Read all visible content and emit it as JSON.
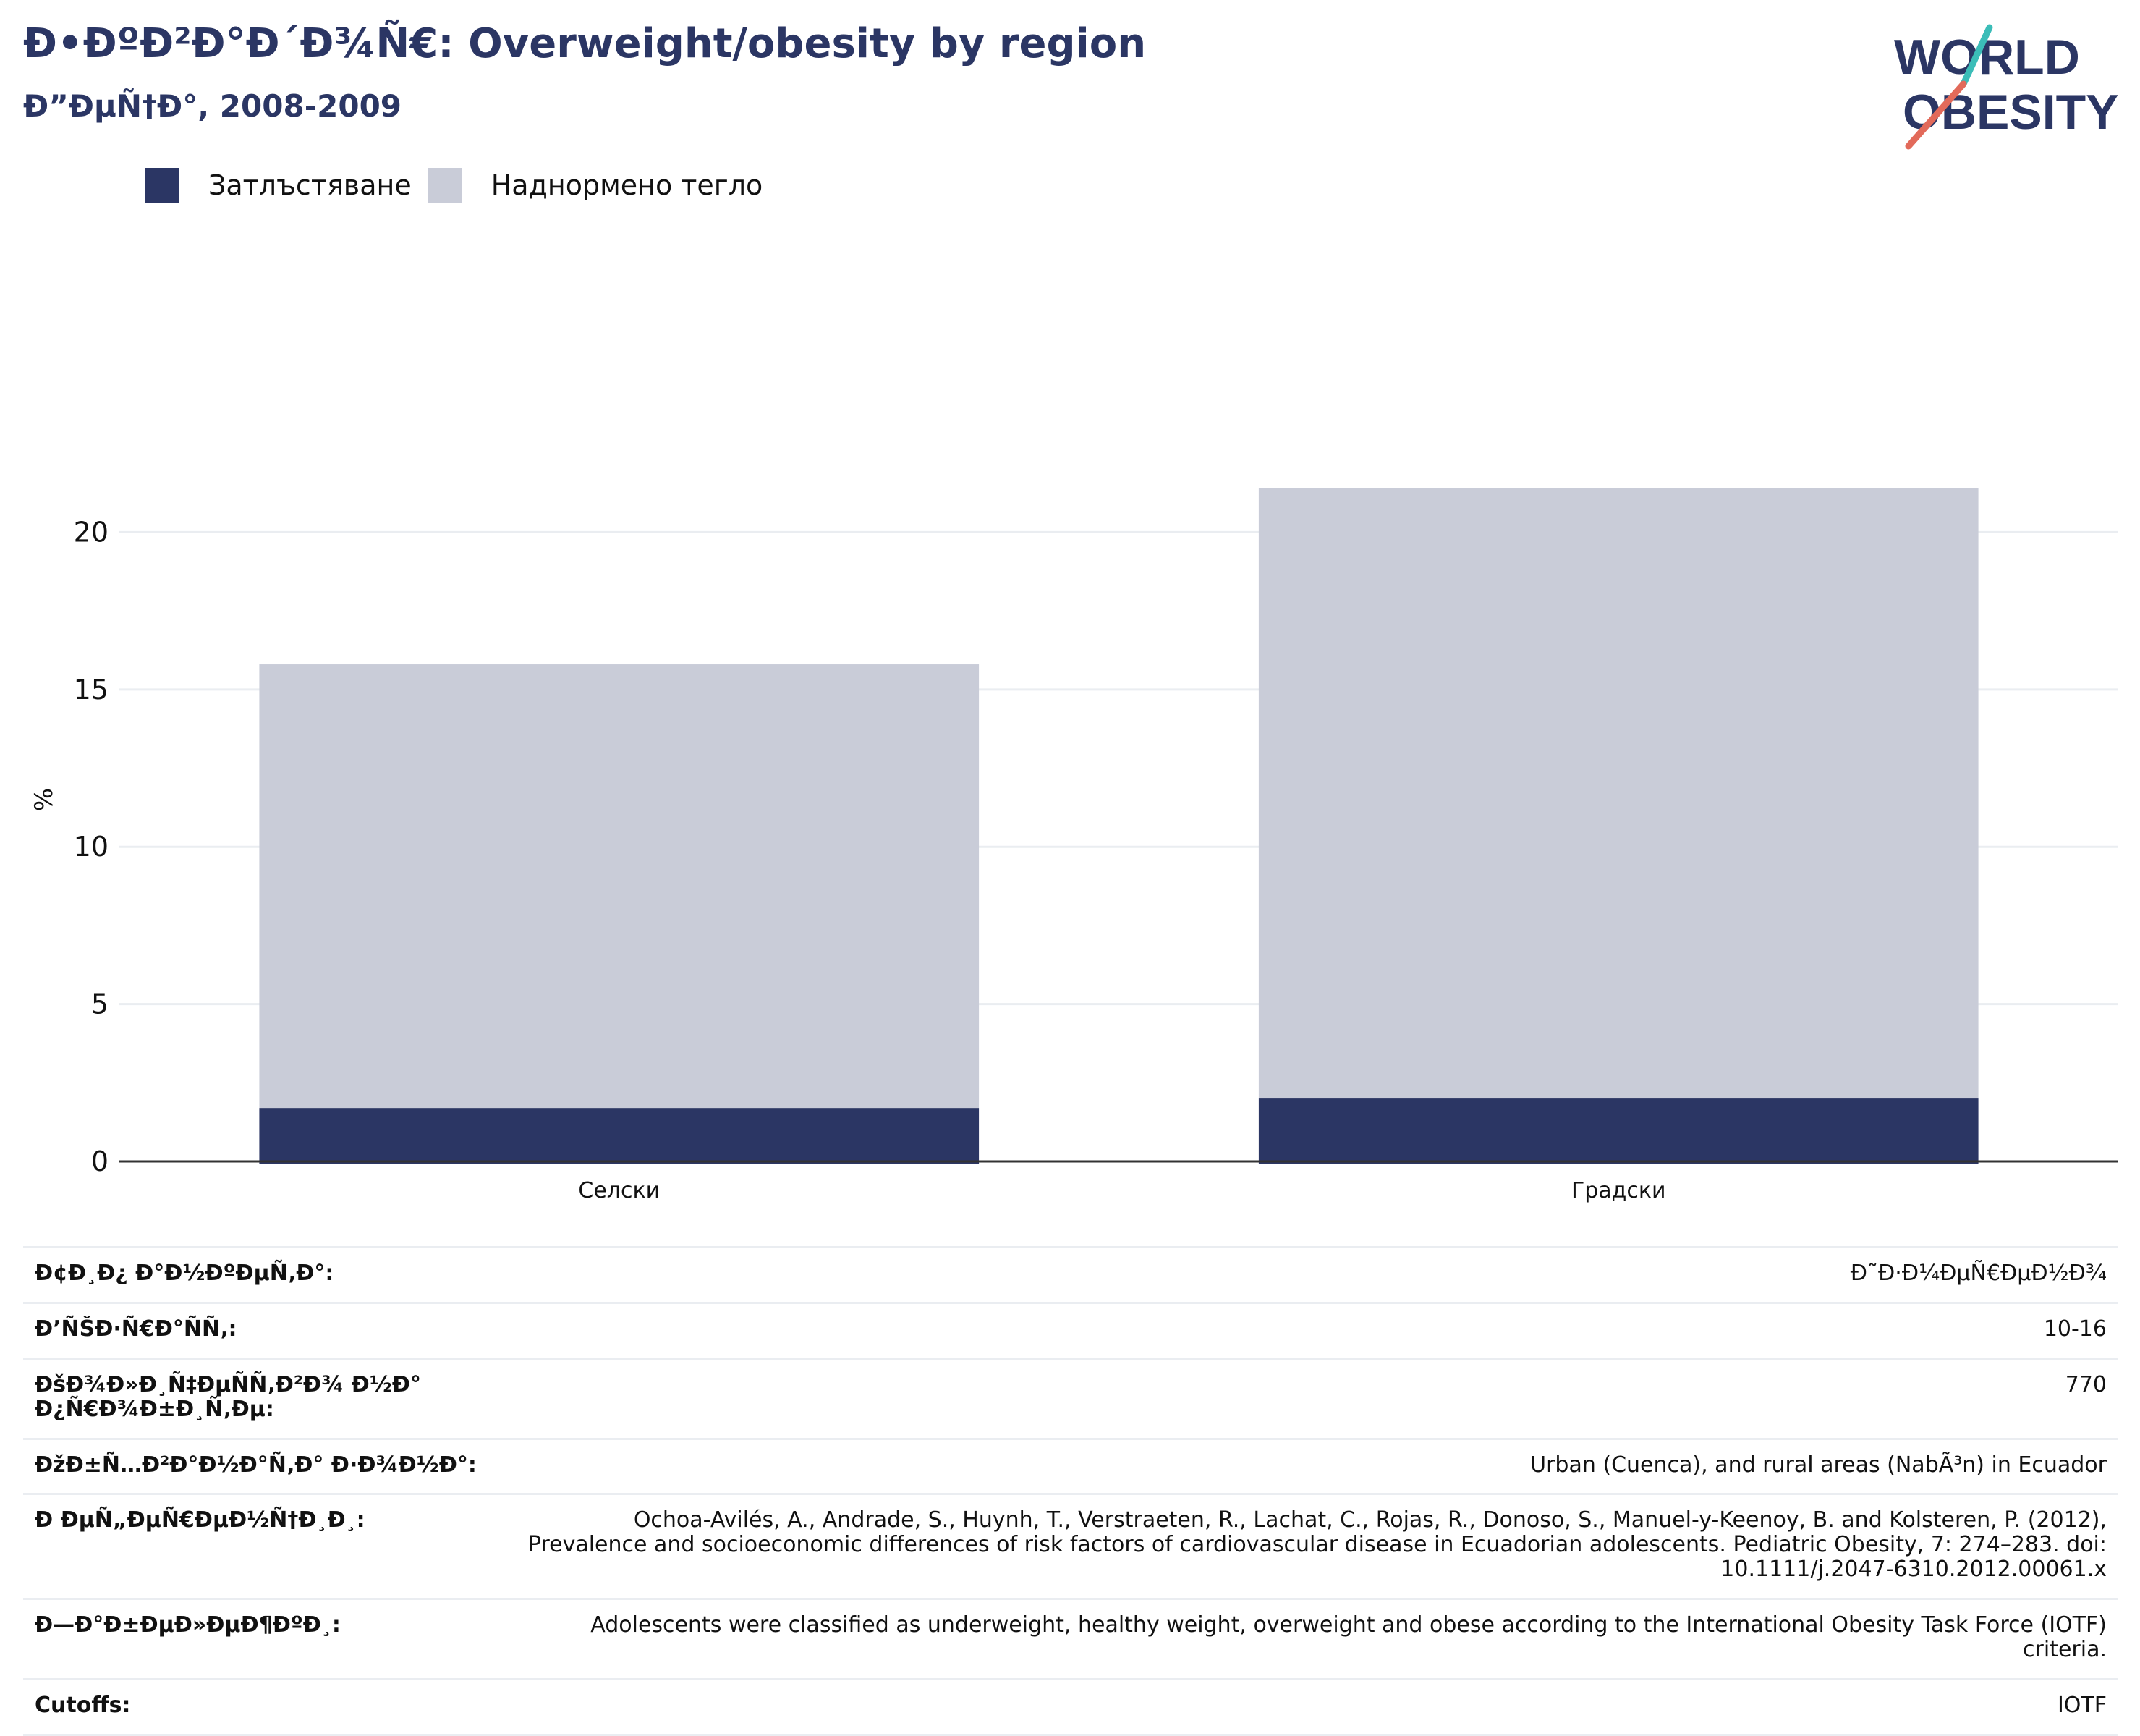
{
  "header": {
    "title": "Ð•ÐºÐ²Ð°Ð´Ð¾Ñ€: Overweight/obesity by region",
    "subtitle": "Ð”ÐµÑ†Ð°, 2008-2009",
    "logo_line1": "WORLD",
    "logo_line2": "OBESITY"
  },
  "legend": [
    {
      "label": "Затлъстяване",
      "color": "#2b3664"
    },
    {
      "label": "Наднормено тегло",
      "color": "#c9ccd8"
    }
  ],
  "chart_data": {
    "type": "bar",
    "stacked": true,
    "categories": [
      "Селски",
      "Градски"
    ],
    "series": [
      {
        "name": "Затлъстяване",
        "values": [
          1.7,
          2.0
        ],
        "color": "#2b3664"
      },
      {
        "name": "Наднормено тегло",
        "values": [
          14.1,
          19.4
        ],
        "color": "#c9ccd8"
      }
    ],
    "ylabel": "%",
    "ylim": [
      0,
      23
    ],
    "yticks": [
      0,
      5,
      10,
      15,
      20
    ],
    "grid": true,
    "legend_position": "top-left"
  },
  "meta": [
    {
      "key": "Ð¢Ð¸Ð¿ Ð°Ð½ÐºÐµÑ‚Ð°:",
      "value": "Ð˜Ð·Ð¼ÐµÑ€ÐµÐ½Ð¾"
    },
    {
      "key": "Ð’ÑŠÐ·Ñ€Ð°ÑÑ‚:",
      "value": "10-16"
    },
    {
      "key": "ÐšÐ¾Ð»Ð¸Ñ‡ÐµÑÑ‚Ð²Ð¾ Ð½Ð° Ð¿Ñ€Ð¾Ð±Ð¸Ñ‚Ðµ:",
      "value": "770"
    },
    {
      "key": "ÐžÐ±Ñ…Ð²Ð°Ð½Ð°Ñ‚Ð° Ð·Ð¾Ð½Ð°:",
      "value": "Urban (Cuenca), and rural areas (NabÃ³n) in Ecuador"
    },
    {
      "key": "Ð ÐµÑ„ÐµÑ€ÐµÐ½Ñ†Ð¸Ð¸:",
      "value": "Ochoa-Avilés, A., Andrade, S., Huynh, T., Verstraeten, R., Lachat, C., Rojas, R., Donoso, S., Manuel-y-Keenoy, B. and Kolsteren, P. (2012), Prevalence and socioeconomic differences of risk factors of cardiovascular disease in Ecuadorian adolescents. Pediatric Obesity, 7: 274–283. doi: 10.1111/j.2047-6310.2012.00061.x"
    },
    {
      "key": "Ð—Ð°Ð±ÐµÐ»ÐµÐ¶ÐºÐ¸:",
      "value": "Adolescents were classified as underweight, healthy weight, overweight and obese according to the International Obesity Task Force (IOTF) criteria."
    },
    {
      "key": "Cutoffs:",
      "value": "IOTF"
    }
  ]
}
